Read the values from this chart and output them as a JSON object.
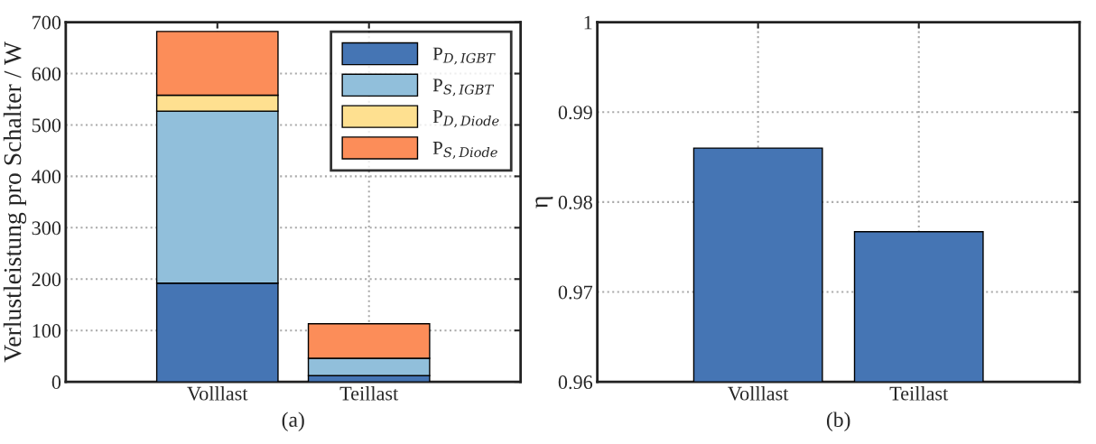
{
  "chart_data": [
    {
      "type": "bar",
      "stacked": true,
      "categories": [
        "Volllast",
        "Teillast"
      ],
      "ylabel": "Verlustleistung pro Schalter / W",
      "xlabel": "(a)",
      "ylim": [
        0,
        700
      ],
      "yticks": [
        0,
        100,
        200,
        300,
        400,
        500,
        600,
        700
      ],
      "grid": true,
      "legend": "top right",
      "series": [
        {
          "name": "P$_{D,IGBT}$",
          "color": "#4575b4",
          "values": [
            192,
            12
          ]
        },
        {
          "name": "P$_{S,IGBT}$",
          "color": "#91bfdb",
          "values": [
            335,
            34
          ]
        },
        {
          "name": "P$_{D,Diode}$",
          "color": "#fee090",
          "values": [
            31,
            null
          ]
        },
        {
          "name": "P$_{S,Diode}$",
          "color": "#fc8d59",
          "values": [
            124,
            67
          ]
        }
      ]
    },
    {
      "type": "bar",
      "categories": [
        "Volllast",
        "Teillast"
      ],
      "ylabel": "η",
      "xlabel": "(b)",
      "ylim": [
        0.96,
        1
      ],
      "yticks": [
        0.96,
        0.97,
        0.98,
        0.99,
        1
      ],
      "grid": true,
      "series": [
        {
          "color": "#4575b4",
          "values": [
            0.986,
            0.9767
          ]
        }
      ]
    }
  ]
}
